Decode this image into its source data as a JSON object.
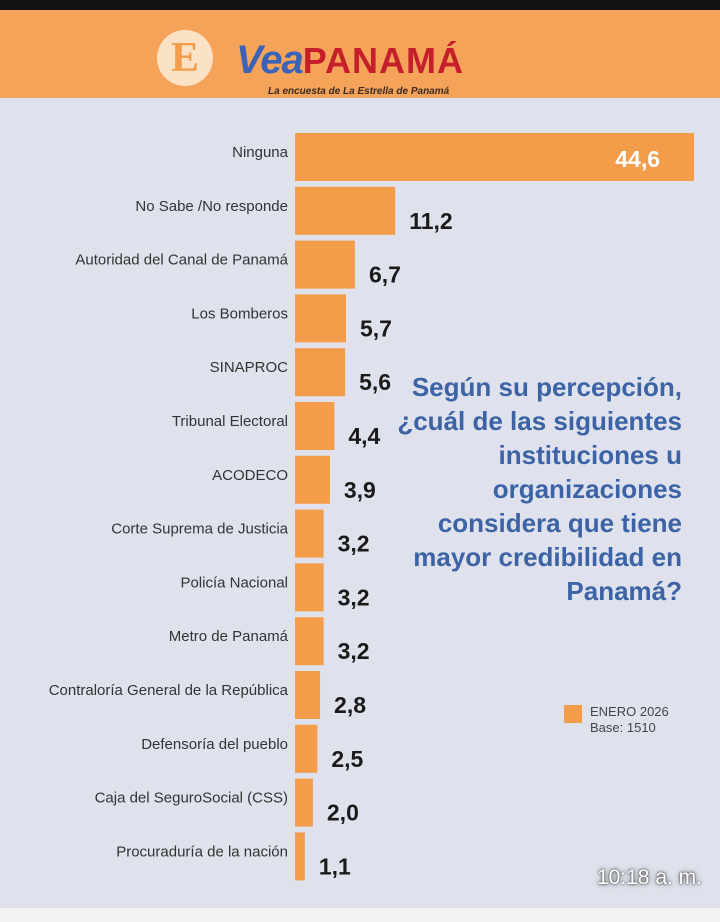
{
  "header": {
    "logo_letter": "E",
    "brand_part1": "Vea",
    "brand_part2": "PANAMÁ",
    "tagline": "La encuesta de La Estrella de Panamá"
  },
  "question": "Según su percepción, ¿cuál de las siguientes instituciones u organizaciones considera que tiene mayor credibilidad en Panamá?",
  "legend": {
    "label": "ENERO 2026",
    "base": "Base: 1510",
    "color": "#f39c4a"
  },
  "status_bar": {
    "time": "10:18 a. m."
  },
  "chart_data": {
    "type": "bar",
    "orientation": "horizontal",
    "categories": [
      "Ninguna",
      "No Sabe /No responde",
      "Autoridad del Canal de Panamá",
      "Los Bomberos",
      "SINAPROC",
      "Tribunal Electoral",
      "ACODECO",
      "Corte Suprema de Justicia",
      "Policía Nacional",
      "Metro de Panamá",
      "Contraloría General de la República",
      "Defensoría del pueblo",
      "Caja del SeguroSocial (CSS)",
      "Procuraduría de la nación"
    ],
    "values": [
      44.6,
      11.2,
      6.7,
      5.7,
      5.6,
      4.4,
      3.9,
      3.2,
      3.2,
      3.2,
      2.8,
      2.5,
      2.0,
      1.1
    ],
    "value_labels": [
      "44,6",
      "11,2",
      "6,7",
      "5,7",
      "5,6",
      "4,4",
      "3,9",
      "3,2",
      "3,2",
      "3,2",
      "2,8",
      "2,5",
      "2,0",
      "1,1"
    ],
    "series": [
      {
        "name": "ENERO 2026"
      }
    ],
    "bar_color": "#f39c4a",
    "xlim": [
      0,
      44.6
    ],
    "grid": false
  }
}
